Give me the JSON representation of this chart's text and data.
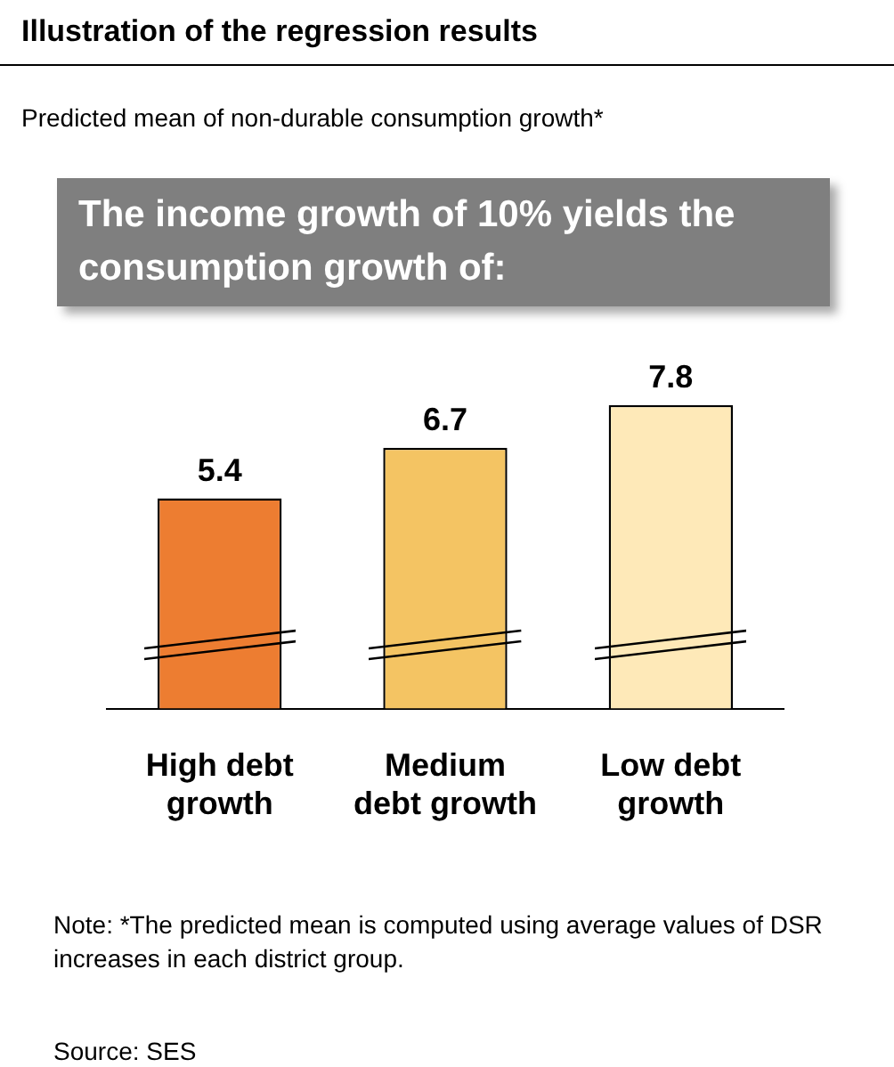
{
  "chart_data": {
    "type": "bar",
    "title": "Illustration of the regression results",
    "subtitle": "Predicted mean of non-durable consumption growth*",
    "categories": [
      "High debt growth",
      "Medium debt growth",
      "Low debt growth"
    ],
    "values": [
      5.4,
      6.7,
      7.8
    ],
    "colors": [
      "#ed7d31",
      "#f4c463",
      "#fee9b8"
    ],
    "tick_labels": "x",
    "grid": false,
    "legend": false,
    "data_labels": true,
    "annotations": [
      "The income growth of 10% yields the consumption growth of:",
      "Note: *The predicted mean is computed using average values of DSR increases in each district group.",
      "Source: SES"
    ]
  }
}
